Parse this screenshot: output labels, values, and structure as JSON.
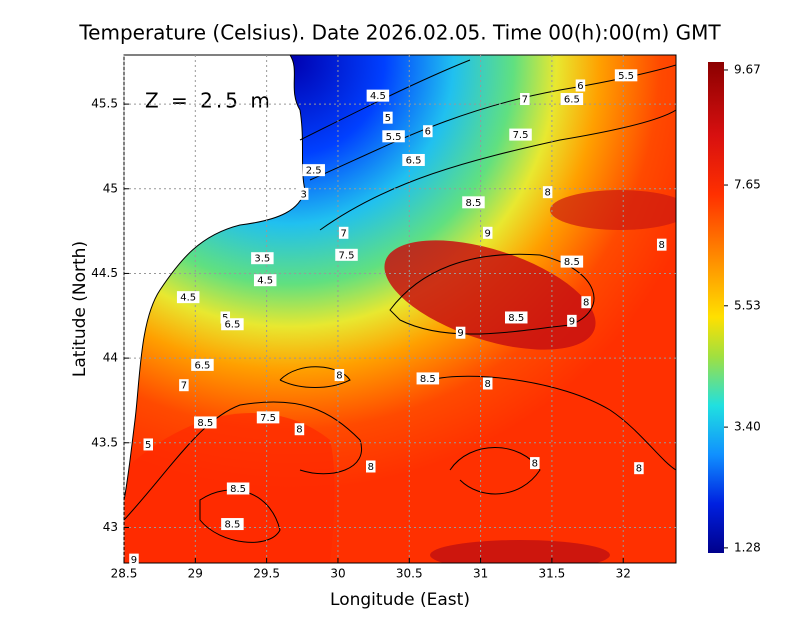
{
  "chart_data": {
    "type": "map",
    "title": "Temperature (Celsius). Date 2026.02.05. Time 00(h):00(m) GMT",
    "annotation": "Z = 2.5 m",
    "xlabel": "Longitude (East)",
    "ylabel": "Latitude (North)",
    "xlim": [
      28.5,
      32.37
    ],
    "ylim": [
      42.79,
      45.79
    ],
    "xticks": [
      28.5,
      29,
      29.5,
      30,
      30.5,
      31,
      31.5,
      32
    ],
    "yticks": [
      43,
      43.5,
      44,
      44.5,
      45,
      45.5
    ],
    "grid": true,
    "colorbar": {
      "clim": [
        1.19,
        9.81
      ],
      "ticks": [
        9.67,
        7.65,
        5.53,
        {
          "value": 3.4,
          "label": "3.40"
        },
        1.28
      ]
    },
    "contour_labels": [
      {
        "value": 4.5,
        "lon": 30.28,
        "lat": 45.55
      },
      {
        "value": 5,
        "lon": 30.35,
        "lat": 45.42
      },
      {
        "value": 5.5,
        "lon": 30.39,
        "lat": 45.31
      },
      {
        "value": 6,
        "lon": 30.63,
        "lat": 45.34
      },
      {
        "value": 6.5,
        "lon": 30.53,
        "lat": 45.17
      },
      {
        "value": 6,
        "lon": 31.7,
        "lat": 45.61
      },
      {
        "value": 5.5,
        "lon": 32.02,
        "lat": 45.67
      },
      {
        "value": 6.5,
        "lon": 31.64,
        "lat": 45.53
      },
      {
        "value": 7,
        "lon": 31.31,
        "lat": 45.53
      },
      {
        "value": 7.5,
        "lon": 31.28,
        "lat": 45.32
      },
      {
        "value": 8,
        "lon": 31.47,
        "lat": 44.98
      },
      {
        "value": 8.5,
        "lon": 30.95,
        "lat": 44.92
      },
      {
        "value": 9,
        "lon": 31.05,
        "lat": 44.74
      },
      {
        "value": 8.5,
        "lon": 31.64,
        "lat": 44.57
      },
      {
        "value": 8,
        "lon": 31.74,
        "lat": 44.33
      },
      {
        "value": 9,
        "lon": 31.64,
        "lat": 44.22
      },
      {
        "value": 8.5,
        "lon": 31.25,
        "lat": 44.24
      },
      {
        "value": 9,
        "lon": 30.86,
        "lat": 44.15
      },
      {
        "value": 8.5,
        "lon": 30.63,
        "lat": 43.88
      },
      {
        "value": 8,
        "lon": 31.05,
        "lat": 43.85
      },
      {
        "value": 8,
        "lon": 30.01,
        "lat": 43.9
      },
      {
        "value": 8,
        "lon": 32.27,
        "lat": 44.67
      },
      {
        "value": 2.5,
        "lon": 29.83,
        "lat": 45.11
      },
      {
        "value": 3,
        "lon": 29.76,
        "lat": 44.97
      },
      {
        "value": 7,
        "lon": 30.04,
        "lat": 44.74
      },
      {
        "value": 7.5,
        "lon": 30.06,
        "lat": 44.61
      },
      {
        "value": 3.5,
        "lon": 29.47,
        "lat": 44.59
      },
      {
        "value": 4.5,
        "lon": 29.49,
        "lat": 44.46
      },
      {
        "value": 4.5,
        "lon": 28.95,
        "lat": 44.36
      },
      {
        "value": 5,
        "lon": 29.21,
        "lat": 44.24
      },
      {
        "value": 6.5,
        "lon": 29.26,
        "lat": 44.2
      },
      {
        "value": 6.5,
        "lon": 29.05,
        "lat": 43.96
      },
      {
        "value": 7,
        "lon": 28.92,
        "lat": 43.84
      },
      {
        "value": 8.5,
        "lon": 29.07,
        "lat": 43.62
      },
      {
        "value": 7.5,
        "lon": 29.51,
        "lat": 43.65
      },
      {
        "value": 8,
        "lon": 29.73,
        "lat": 43.58
      },
      {
        "value": 8,
        "lon": 30.23,
        "lat": 43.36
      },
      {
        "value": 8,
        "lon": 31.38,
        "lat": 43.38
      },
      {
        "value": 8,
        "lon": 32.11,
        "lat": 43.35
      },
      {
        "value": 8.5,
        "lon": 29.3,
        "lat": 43.23
      },
      {
        "value": 8.5,
        "lon": 29.26,
        "lat": 43.02
      },
      {
        "value": 5,
        "lon": 28.67,
        "lat": 43.49
      },
      {
        "value": 9,
        "lon": 28.57,
        "lat": 42.81
      }
    ]
  }
}
